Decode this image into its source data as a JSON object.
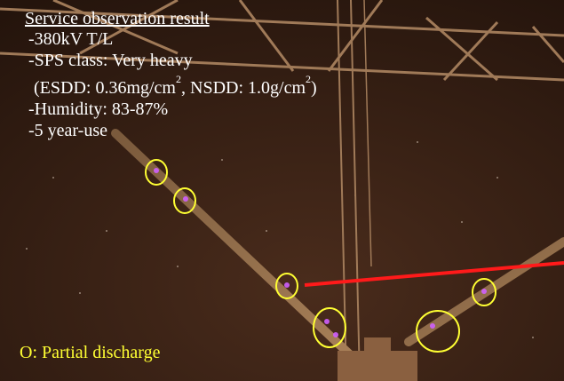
{
  "caption": {
    "title": "Service observation result",
    "lines": [
      "-380kV T/L",
      "-SPS class: Very heavy"
    ],
    "deposit": {
      "esdd": "(ESDD: 0.36mg/cm",
      "esdd_sup": "2",
      "nsdd": ", NSDD: 1.0g/cm",
      "nsdd_sup": "2",
      "close": ")"
    },
    "more_lines": [
      "-Humidity: 83-87%",
      "-5 year-use"
    ]
  },
  "legend": "O: Partial discharge"
}
